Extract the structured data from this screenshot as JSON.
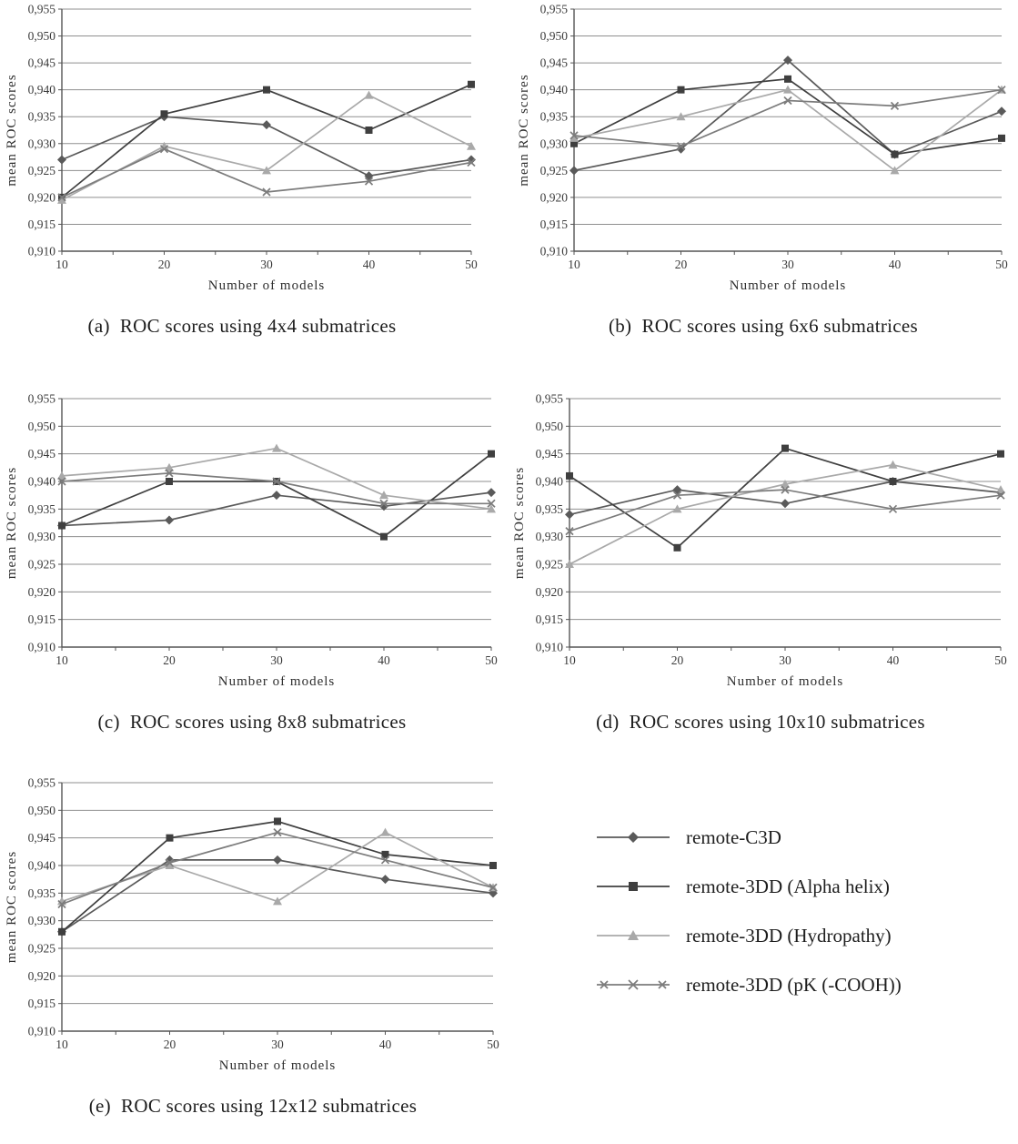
{
  "meta": {
    "decimal": "comma",
    "axis_color": "#555555",
    "grid_color": "#8f8f8f"
  },
  "legend": {
    "items": [
      {
        "label": "remote-C3D",
        "marker": "diamond",
        "color": "#5a5a5a"
      },
      {
        "label": "remote-3DD (Alpha helix)",
        "marker": "square",
        "color": "#3f3f3f"
      },
      {
        "label": "remote-3DD (Hydropathy)",
        "marker": "triangle",
        "color": "#a9a9a9"
      },
      {
        "label": "remote-3DD (pK (-COOH))",
        "marker": "x",
        "color": "#7c7c7c"
      }
    ]
  },
  "chart_data": [
    {
      "type": "line",
      "caption": "(a)  ROC scores using 4x4 submatrices",
      "xlabel": "Number of models",
      "ylabel": "mean ROC scores",
      "x": [
        10,
        20,
        30,
        40,
        50
      ],
      "xtick_labels": [
        "10",
        "20",
        "30",
        "40",
        "50"
      ],
      "ylim": [
        0.91,
        0.955
      ],
      "ytick_step": 0.005,
      "grid": true,
      "legend_position": "none",
      "series": [
        {
          "name": "remote-C3D",
          "marker": "diamond",
          "color": "#5a5a5a",
          "values": [
            0.927,
            0.935,
            0.9335,
            0.924,
            0.927
          ]
        },
        {
          "name": "remote-3DD (Alpha helix)",
          "marker": "square",
          "color": "#3f3f3f",
          "values": [
            0.92,
            0.9355,
            0.94,
            0.9325,
            0.941
          ]
        },
        {
          "name": "remote-3DD (Hydropathy)",
          "marker": "triangle",
          "color": "#a9a9a9",
          "values": [
            0.9195,
            0.9295,
            0.925,
            0.939,
            0.9295
          ]
        },
        {
          "name": "remote-3DD (pK (-COOH))",
          "marker": "x",
          "color": "#7c7c7c",
          "values": [
            0.92,
            0.929,
            0.921,
            0.923,
            0.9265
          ]
        }
      ]
    },
    {
      "type": "line",
      "caption": "(b)  ROC scores using 6x6 submatrices",
      "xlabel": "Number of models",
      "ylabel": "mean ROC scores",
      "x": [
        10,
        20,
        30,
        40,
        50
      ],
      "xtick_labels": [
        "10",
        "20",
        "30",
        "40",
        "50"
      ],
      "ylim": [
        0.91,
        0.955
      ],
      "ytick_step": 0.005,
      "grid": true,
      "legend_position": "none",
      "series": [
        {
          "name": "remote-C3D",
          "marker": "diamond",
          "color": "#5a5a5a",
          "values": [
            0.925,
            0.929,
            0.9455,
            0.928,
            0.936
          ]
        },
        {
          "name": "remote-3DD (Alpha helix)",
          "marker": "square",
          "color": "#3f3f3f",
          "values": [
            0.93,
            0.94,
            0.942,
            0.928,
            0.931
          ]
        },
        {
          "name": "remote-3DD (Hydropathy)",
          "marker": "triangle",
          "color": "#a9a9a9",
          "values": [
            0.931,
            0.935,
            0.94,
            0.925,
            0.94
          ]
        },
        {
          "name": "remote-3DD (pK (-COOH))",
          "marker": "x",
          "color": "#7c7c7c",
          "values": [
            0.9315,
            0.9295,
            0.938,
            0.937,
            0.94
          ]
        }
      ]
    },
    {
      "type": "line",
      "caption": "(c)  ROC scores using 8x8 submatrices",
      "xlabel": "Number of models",
      "ylabel": "mean ROC scores",
      "x": [
        10,
        20,
        30,
        40,
        50
      ],
      "xtick_labels": [
        "10",
        "20",
        "30",
        "40",
        "50"
      ],
      "ylim": [
        0.91,
        0.955
      ],
      "ytick_step": 0.005,
      "grid": true,
      "legend_position": "none",
      "series": [
        {
          "name": "remote-C3D",
          "marker": "diamond",
          "color": "#5a5a5a",
          "values": [
            0.932,
            0.933,
            0.9375,
            0.9355,
            0.938
          ]
        },
        {
          "name": "remote-3DD (Alpha helix)",
          "marker": "square",
          "color": "#3f3f3f",
          "values": [
            0.932,
            0.94,
            0.94,
            0.93,
            0.945
          ]
        },
        {
          "name": "remote-3DD (Hydropathy)",
          "marker": "triangle",
          "color": "#a9a9a9",
          "values": [
            0.941,
            0.9425,
            0.946,
            0.9375,
            0.935
          ]
        },
        {
          "name": "remote-3DD (pK (-COOH))",
          "marker": "x",
          "color": "#7c7c7c",
          "values": [
            0.94,
            0.9415,
            0.94,
            0.936,
            0.936
          ]
        }
      ]
    },
    {
      "type": "line",
      "caption": "(d)  ROC scores using 10x10 submatrices",
      "xlabel": "Number of models",
      "ylabel": "mean ROC scores",
      "x": [
        10,
        20,
        30,
        40,
        50
      ],
      "xtick_labels": [
        "10",
        "20",
        "30",
        "40",
        "50"
      ],
      "ylim": [
        0.91,
        0.955
      ],
      "ytick_step": 0.005,
      "grid": true,
      "legend_position": "none",
      "series": [
        {
          "name": "remote-C3D",
          "marker": "diamond",
          "color": "#5a5a5a",
          "values": [
            0.934,
            0.9385,
            0.936,
            0.94,
            0.938
          ]
        },
        {
          "name": "remote-3DD (Alpha helix)",
          "marker": "square",
          "color": "#3f3f3f",
          "values": [
            0.941,
            0.928,
            0.946,
            0.94,
            0.945
          ]
        },
        {
          "name": "remote-3DD (Hydropathy)",
          "marker": "triangle",
          "color": "#a9a9a9",
          "values": [
            0.925,
            0.935,
            0.9395,
            0.943,
            0.9385
          ]
        },
        {
          "name": "remote-3DD (pK (-COOH))",
          "marker": "x",
          "color": "#7c7c7c",
          "values": [
            0.931,
            0.9375,
            0.9385,
            0.935,
            0.9375
          ]
        }
      ]
    },
    {
      "type": "line",
      "caption": "(e)  ROC scores using 12x12 submatrices",
      "xlabel": "Number of models",
      "ylabel": "mean ROC scores",
      "x": [
        10,
        20,
        30,
        40,
        50
      ],
      "xtick_labels": [
        "10",
        "20",
        "30",
        "40",
        "50"
      ],
      "ylim": [
        0.91,
        0.955
      ],
      "ytick_step": 0.005,
      "grid": true,
      "legend_position": "none",
      "series": [
        {
          "name": "remote-C3D",
          "marker": "diamond",
          "color": "#5a5a5a",
          "values": [
            0.928,
            0.941,
            0.941,
            0.9375,
            0.935
          ]
        },
        {
          "name": "remote-3DD (Alpha helix)",
          "marker": "square",
          "color": "#3f3f3f",
          "values": [
            0.928,
            0.945,
            0.948,
            0.942,
            0.94
          ]
        },
        {
          "name": "remote-3DD (Hydropathy)",
          "marker": "triangle",
          "color": "#a9a9a9",
          "values": [
            0.9335,
            0.94,
            0.9335,
            0.946,
            0.936
          ]
        },
        {
          "name": "remote-3DD (pK (-COOH))",
          "marker": "x",
          "color": "#7c7c7c",
          "values": [
            0.933,
            0.9405,
            0.946,
            0.941,
            0.936
          ]
        }
      ]
    }
  ]
}
